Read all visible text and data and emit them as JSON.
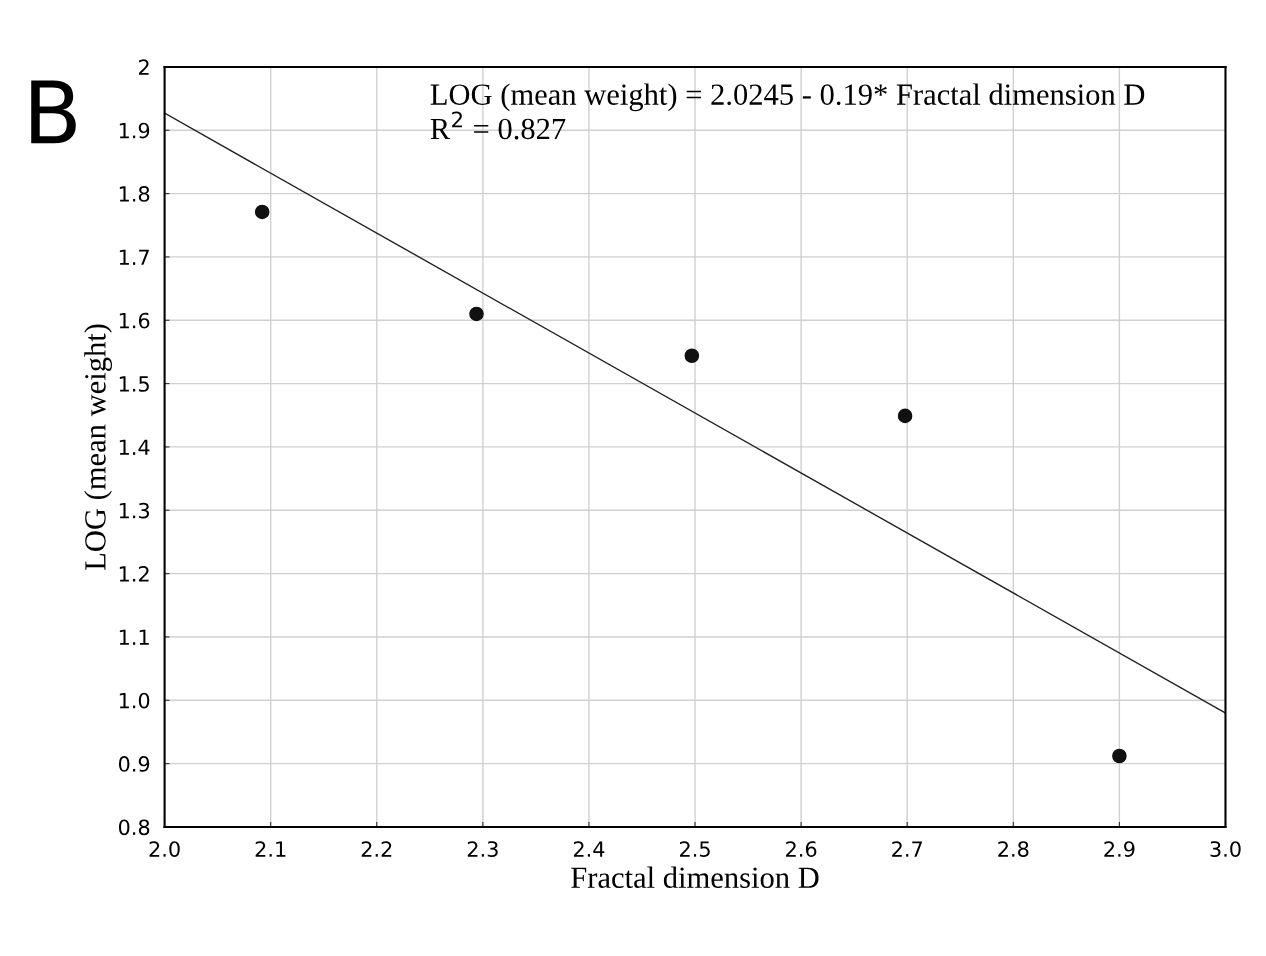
{
  "chart_data": {
    "type": "scatter",
    "xlabel": "Fractal dimension D",
    "ylabel": "LOG (mean weight)",
    "x": [
      2.092,
      2.294,
      2.497,
      2.698,
      2.9
    ],
    "series": [
      {
        "color": "#111111",
        "marker": "circle",
        "values": [
          1.771,
          1.61,
          1.544,
          1.449,
          0.912
        ]
      },
      {
        "type": "line",
        "color": "#222222",
        "x": [
          2.0,
          3.0
        ],
        "values": [
          1.927,
          0.98
        ]
      }
    ],
    "grid": true,
    "xlim": [
      2.0,
      3.0
    ],
    "ylim": [
      0.8,
      2.0
    ],
    "xticks": [
      {
        "value": 2.0,
        "label": "2.0"
      },
      2.1,
      2.2,
      2.3,
      2.4,
      2.5,
      2.6,
      2.7,
      2.8,
      2.9,
      {
        "value": 3.0,
        "label": "3.0"
      }
    ],
    "yticks": [
      0.8,
      0.9,
      {
        "value": 1.0,
        "label": "1.0"
      },
      1.1,
      1.2,
      1.3,
      1.4,
      1.5,
      1.6,
      1.7,
      1.8,
      1.9,
      2
    ],
    "annotations": [
      "B",
      "LOG (mean weight) = 2.0245 - 0.19* Fractal dimension D",
      "R$^{2}$ = 0.827"
    ]
  }
}
